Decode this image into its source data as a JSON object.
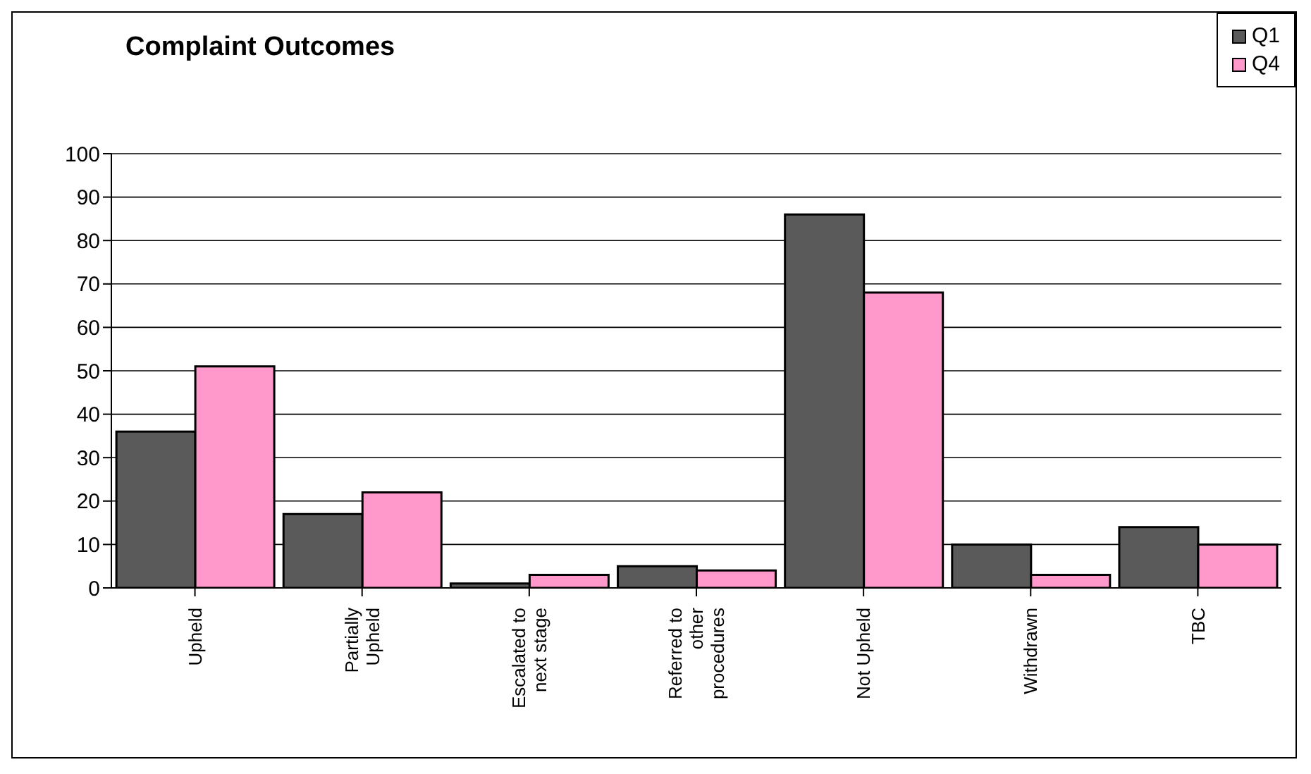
{
  "chart_data": {
    "type": "bar",
    "title": "Complaint Outcomes",
    "categories": [
      "Upheld",
      "Partially Upheld",
      "Escalated to next stage",
      "Referred to other procedures",
      "Not Upheld",
      "Withdrawn",
      "TBC"
    ],
    "series": [
      {
        "name": "Q1",
        "color": "#5a5a5a",
        "values": [
          36,
          17,
          1,
          5,
          86,
          10,
          14
        ]
      },
      {
        "name": "Q4",
        "color": "#ff99cc",
        "values": [
          51,
          22,
          3,
          4,
          68,
          3,
          10
        ]
      }
    ],
    "ylim": [
      0,
      100
    ],
    "yticks": [
      0,
      10,
      20,
      30,
      40,
      50,
      60,
      70,
      80,
      90,
      100
    ],
    "grid": "y",
    "legend": "top right"
  }
}
